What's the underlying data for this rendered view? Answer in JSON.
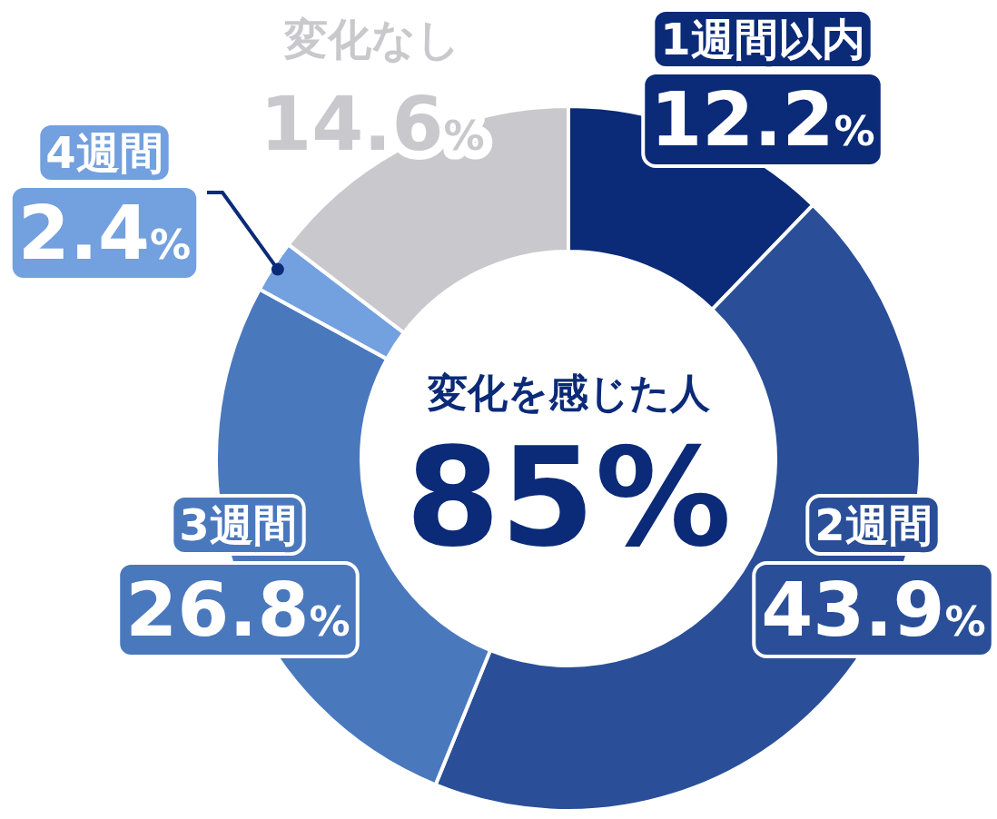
{
  "chart_data": {
    "type": "donut",
    "categories": [
      "1週間以内",
      "2週間",
      "3週間",
      "4週間",
      "変化なし"
    ],
    "values": [
      12.2,
      43.9,
      26.8,
      2.4,
      14.6
    ],
    "colors": [
      "#0b2a78",
      "#2a4f98",
      "#4a78bd",
      "#73a0de",
      "#c9c8cc"
    ],
    "value_labels": [
      "12.2%",
      "43.9%",
      "26.8%",
      "2.4%",
      "14.6%"
    ],
    "annotations": [
      "変化を感じた人",
      "85%"
    ]
  }
}
